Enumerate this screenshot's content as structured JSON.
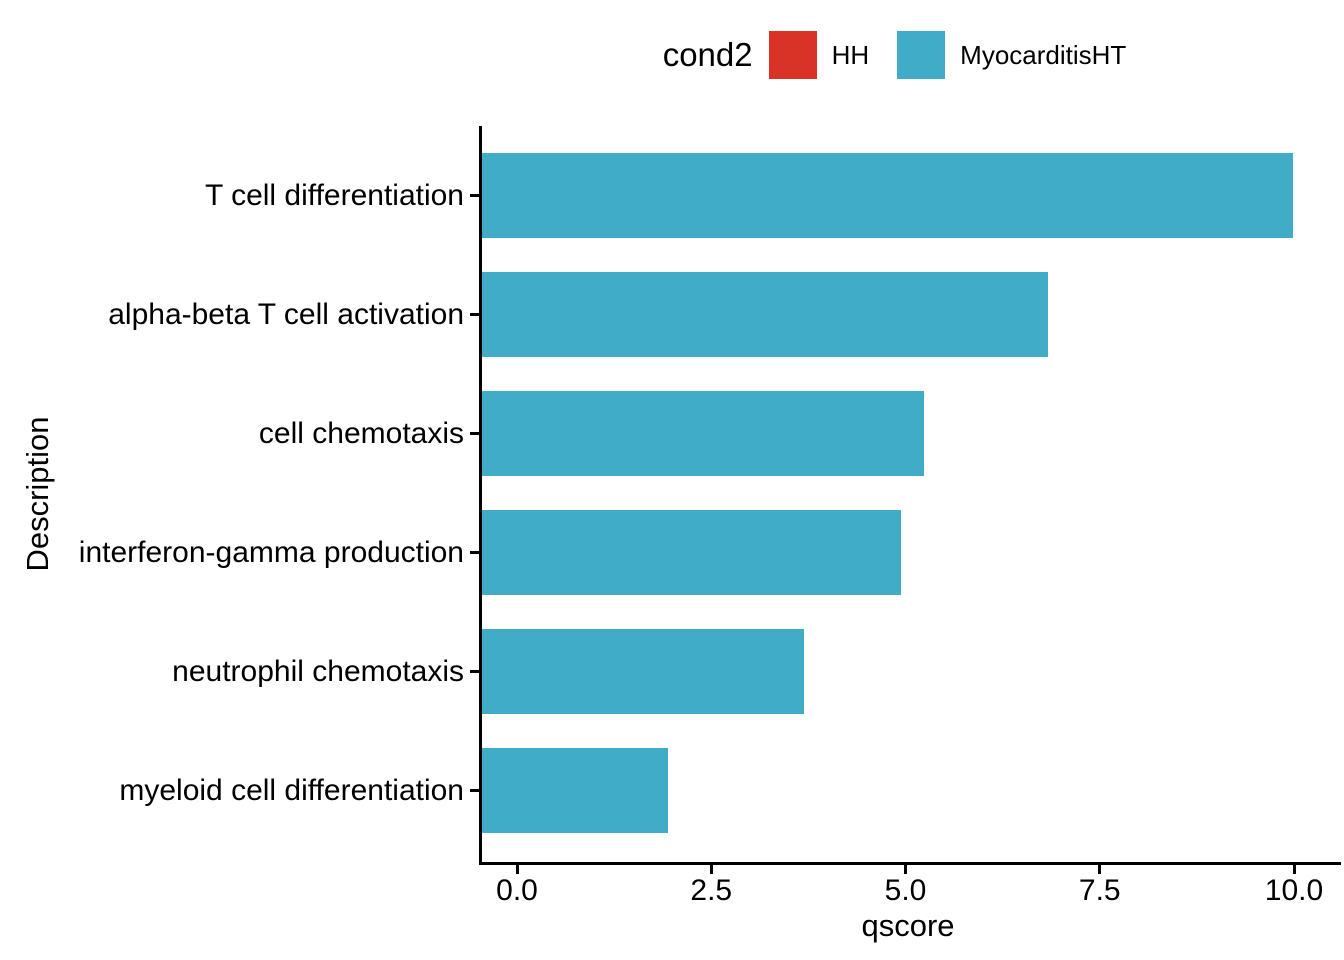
{
  "chart_data": {
    "type": "bar",
    "orientation": "horizontal",
    "title": "",
    "xlabel": "qscore",
    "ylabel": "Description",
    "categories": [
      "T cell differentiation",
      "alpha-beta T cell activation",
      "cell chemotaxis",
      "interferon-gamma production",
      "neutrophil chemotaxis",
      "myeloid cell differentiation"
    ],
    "series": [
      {
        "name": "MyocarditisHT",
        "values": [
          9.95,
          6.8,
          5.2,
          4.9,
          3.65,
          1.9
        ],
        "color": "#41acc8"
      }
    ],
    "xlim": [
      0,
      10
    ],
    "xticks": [
      0,
      2.5,
      5,
      7.5,
      10
    ],
    "xtick_labels": [
      "0.0",
      "2.5",
      "5.0",
      "7.5",
      "10.0"
    ],
    "grid": false,
    "legend": {
      "title": "cond2",
      "position": "top-center",
      "entries": [
        {
          "label": "HH",
          "color": "#d93327"
        },
        {
          "label": "MyocarditisHT",
          "color": "#41acc8"
        }
      ]
    }
  },
  "colors": {
    "background": "#ffffff",
    "axis": "#000000",
    "text": "#000000",
    "bar": "#41acc8",
    "legend_hh": "#d93327",
    "legend_myocarditis": "#41acc8"
  }
}
